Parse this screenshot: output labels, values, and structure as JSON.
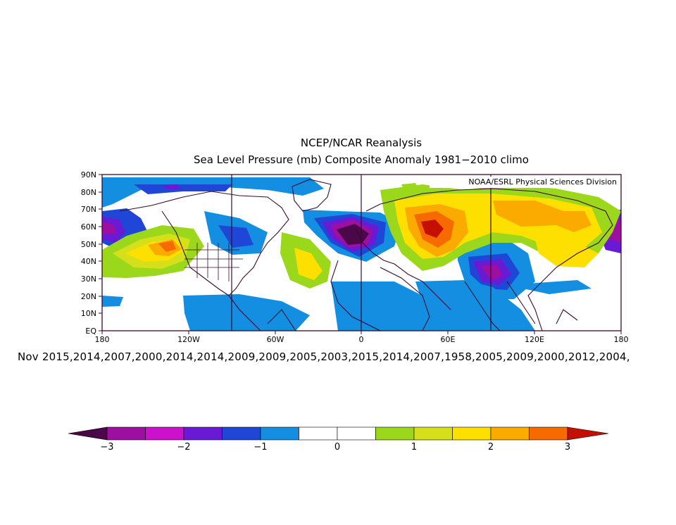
{
  "title": {
    "line1": "NCEP/NCAR Reanalysis",
    "line2": "Sea Level Pressure (mb) Composite Anomaly 1981−2010 climo"
  },
  "credit": "NOAA/ESRL Physical Sciences Division",
  "lat_labels": [
    "90N",
    "80N",
    "70N",
    "60N",
    "50N",
    "40N",
    "30N",
    "20N",
    "10N",
    "EQ"
  ],
  "lon_labels": [
    "180",
    "120W",
    "60W",
    "0",
    "60E",
    "120E",
    "180"
  ],
  "years_caption": "Nov 2015,2014,2007,2000,2014,2014,2009,2009,2005,2003,2015,2014,2007,1958,2005,2009,2000,2012,2004,",
  "colorbar": {
    "tick_labels": [
      "−3",
      "−2",
      "−1",
      "0",
      "1",
      "2",
      "3"
    ],
    "colors": [
      "#6a0b6e",
      "#9c0fa0",
      "#cc10cc",
      "#6a19d4",
      "#1f46d6",
      "#138ee0",
      "#ffffff",
      "#ffffff",
      "#9bd81c",
      "#d6e01a",
      "#fde000",
      "#fbaa00",
      "#f66a00",
      "#c41000"
    ]
  }
}
